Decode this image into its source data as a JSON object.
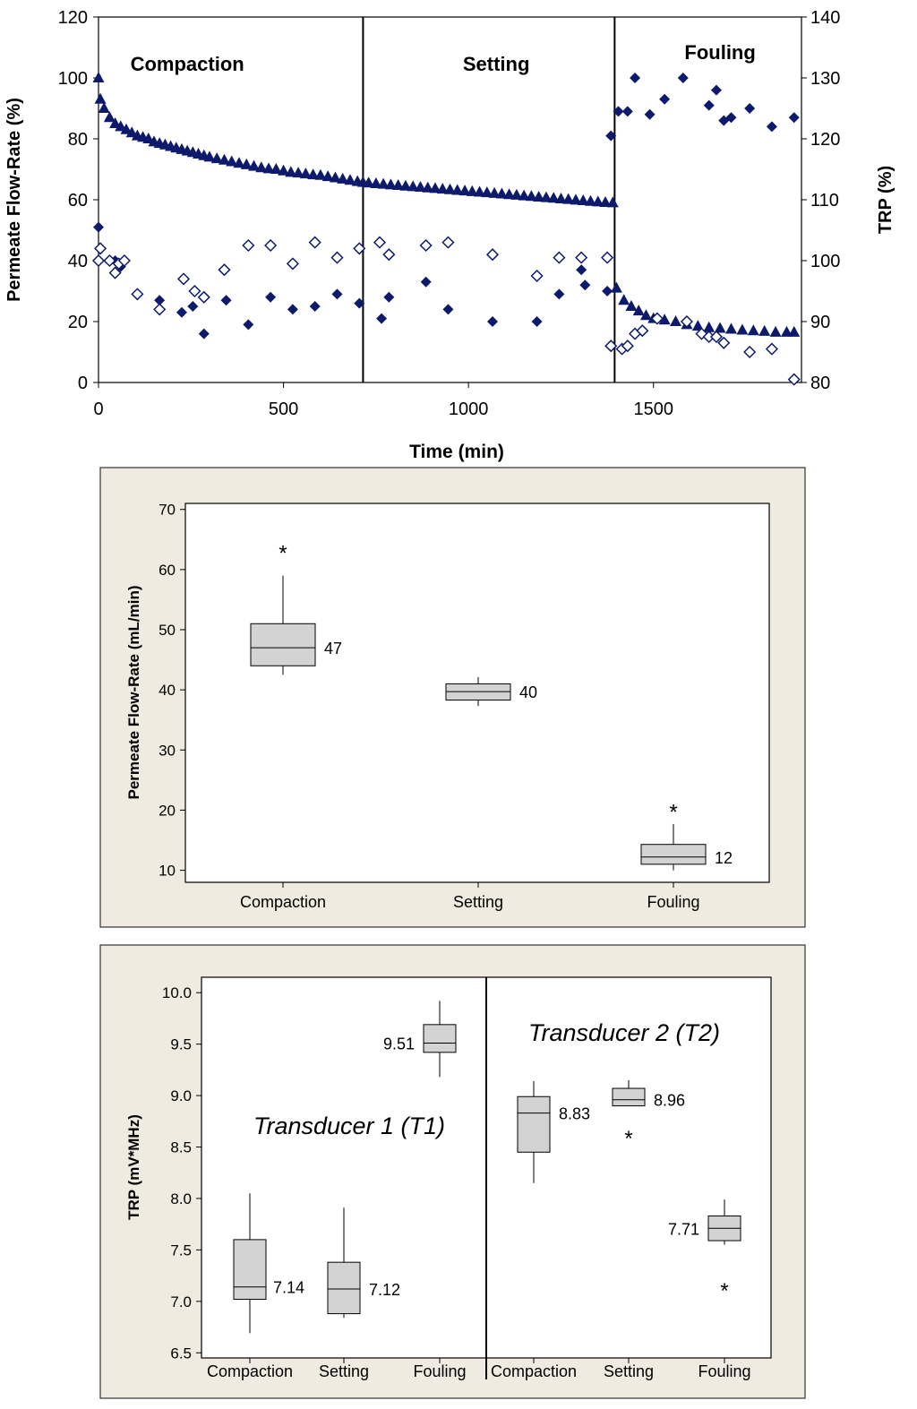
{
  "colors": {
    "series": "#0d1a6b",
    "panel_bg": "#efebe0",
    "box_fill": "#d3d3d3",
    "axis": "#000000"
  },
  "chart_data": [
    {
      "type": "scatter",
      "xlabel": "Time (min)",
      "ylabel": "Permeate Flow-Rate (%)",
      "y2label": "TRP (%)",
      "xlim": [
        0,
        1900
      ],
      "ylim": [
        0,
        120
      ],
      "y2lim": [
        80,
        140
      ],
      "xticks": [
        "0",
        "500",
        "1000",
        "1500"
      ],
      "yticks": [
        "0",
        "20",
        "40",
        "60",
        "80",
        "100",
        "120"
      ],
      "y2ticks": [
        "80",
        "90",
        "100",
        "110",
        "120",
        "130",
        "140"
      ],
      "phase_boundaries": [
        715,
        1395
      ],
      "phase_labels": [
        "Compaction",
        "Setting",
        "Fouling"
      ],
      "series": [
        {
          "name": "Permeate Flow-Rate",
          "axis": "left",
          "marker": "triangle",
          "x": [
            0,
            5,
            15,
            30,
            45,
            60,
            75,
            90,
            105,
            120,
            135,
            150,
            165,
            180,
            195,
            210,
            225,
            240,
            255,
            270,
            285,
            300,
            320,
            340,
            360,
            380,
            400,
            420,
            440,
            460,
            480,
            500,
            520,
            540,
            560,
            580,
            600,
            620,
            640,
            660,
            680,
            700,
            715,
            730,
            750,
            770,
            790,
            810,
            830,
            850,
            870,
            890,
            910,
            930,
            950,
            970,
            990,
            1010,
            1030,
            1050,
            1070,
            1090,
            1110,
            1130,
            1150,
            1170,
            1190,
            1210,
            1230,
            1250,
            1270,
            1290,
            1310,
            1330,
            1350,
            1370,
            1390,
            1400,
            1420,
            1440,
            1460,
            1480,
            1500,
            1530,
            1560,
            1590,
            1620,
            1650,
            1680,
            1710,
            1740,
            1770,
            1800,
            1830,
            1860,
            1880
          ],
          "y": [
            100,
            93,
            90,
            87,
            85,
            84,
            83,
            82,
            81,
            80.5,
            80,
            79,
            78.5,
            78,
            77.5,
            77,
            76.5,
            76,
            75.5,
            75,
            74.5,
            74,
            73.5,
            73,
            72.5,
            72,
            71.5,
            71,
            70.5,
            70.2,
            70,
            69.5,
            69,
            68.8,
            68.5,
            68.2,
            68,
            67.6,
            67.2,
            66.8,
            66.4,
            66,
            65.7,
            65.5,
            65.3,
            65.1,
            64.9,
            64.7,
            64.5,
            64.3,
            64.1,
            63.9,
            63.7,
            63.5,
            63.3,
            63.1,
            62.9,
            62.7,
            62.5,
            62.3,
            62.1,
            61.9,
            61.7,
            61.5,
            61.3,
            61.1,
            60.9,
            60.7,
            60.5,
            60.3,
            60.1,
            59.9,
            59.7,
            59.5,
            59.3,
            59.1,
            59,
            31,
            27,
            25,
            23.5,
            22,
            21,
            20.5,
            20,
            19,
            18.5,
            18,
            17.8,
            17.5,
            17.2,
            17,
            16.8,
            16.5,
            16.5,
            16.5
          ]
        },
        {
          "name": "TRP T1",
          "axis": "right",
          "marker": "filled-diamond",
          "x": [
            0,
            45,
            60,
            165,
            225,
            255,
            285,
            345,
            405,
            465,
            525,
            585,
            645,
            705,
            765,
            785,
            885,
            945,
            1065,
            1185,
            1245,
            1305,
            1315,
            1375,
            1385,
            1405,
            1430,
            1450,
            1490,
            1530,
            1580,
            1650,
            1670,
            1690,
            1710,
            1760,
            1820,
            1880
          ],
          "y": [
            105.5,
            100,
            99,
            93.5,
            91.5,
            92.5,
            88,
            93.5,
            89.5,
            94,
            92,
            92.5,
            94.5,
            93,
            90.5,
            94,
            96.5,
            92,
            90,
            90,
            94.5,
            98.5,
            96,
            95,
            120.5,
            124.5,
            124.5,
            130,
            124,
            126.5,
            130,
            125.5,
            128,
            123,
            123.5,
            125,
            122,
            123.5
          ]
        },
        {
          "name": "TRP T2",
          "axis": "right",
          "marker": "open-diamond",
          "x": [
            0,
            5,
            30,
            45,
            55,
            70,
            105,
            165,
            230,
            260,
            285,
            340,
            405,
            465,
            525,
            585,
            645,
            705,
            760,
            785,
            885,
            945,
            1065,
            1185,
            1245,
            1305,
            1375,
            1385,
            1415,
            1430,
            1450,
            1470,
            1510,
            1590,
            1630,
            1650,
            1670,
            1690,
            1760,
            1820,
            1880
          ],
          "y": [
            100,
            102,
            100,
            98,
            99.5,
            100,
            94.5,
            92,
            97,
            95,
            94,
            98.5,
            102.5,
            102.5,
            99.5,
            103,
            100.5,
            102,
            103,
            101,
            102.5,
            103,
            101,
            97.5,
            100.5,
            100.5,
            100.5,
            86,
            85.5,
            86,
            88,
            88.5,
            90.5,
            90,
            88,
            87.5,
            87.5,
            86.5,
            85,
            85.5,
            80.5
          ]
        }
      ]
    },
    {
      "type": "boxplot",
      "ylabel": "Permeate Flow-Rate (mL/min)",
      "ylim": [
        8,
        71
      ],
      "yticks": [
        "10",
        "20",
        "30",
        "40",
        "50",
        "60",
        "70"
      ],
      "categories": [
        "Compaction",
        "Setting",
        "Fouling"
      ],
      "boxes": [
        {
          "name": "Compaction",
          "whisker_low": 42.5,
          "q1": 44,
          "median": 47,
          "q3": 51,
          "whisker_high": 59,
          "outliers": [
            63
          ],
          "median_label": "47"
        },
        {
          "name": "Setting",
          "whisker_low": 37.3,
          "q1": 38.3,
          "median": 39.7,
          "q3": 41,
          "whisker_high": 42.1,
          "outliers": [],
          "median_label": "40"
        },
        {
          "name": "Fouling",
          "whisker_low": 10,
          "q1": 11,
          "median": 12.2,
          "q3": 14.3,
          "whisker_high": 17.7,
          "outliers": [
            20
          ],
          "median_label": "12"
        }
      ]
    },
    {
      "type": "boxplot",
      "ylabel": "TRP (mV*MHz)",
      "ylim": [
        6.45,
        10.15
      ],
      "yticks": [
        "6.5",
        "7.0",
        "7.5",
        "8.0",
        "8.5",
        "9.0",
        "9.5",
        "10.0"
      ],
      "categories": [
        "Compaction",
        "Setting",
        "Fouling",
        "Compaction",
        "Setting",
        "Fouling"
      ],
      "groups": [
        "Transducer 1 (T1)",
        "Transducer 2 (T2)"
      ],
      "boxes": [
        {
          "name": "Compaction",
          "group": "T1",
          "whisker_low": 6.69,
          "q1": 7.02,
          "median": 7.14,
          "q3": 7.6,
          "whisker_high": 8.05,
          "outliers": [],
          "median_label": "7.14"
        },
        {
          "name": "Setting",
          "group": "T1",
          "whisker_low": 6.84,
          "q1": 6.88,
          "median": 7.12,
          "q3": 7.38,
          "whisker_high": 7.91,
          "outliers": [],
          "median_label": "7.12"
        },
        {
          "name": "Fouling",
          "group": "T1",
          "whisker_low": 9.18,
          "q1": 9.42,
          "median": 9.51,
          "q3": 9.69,
          "whisker_high": 9.92,
          "outliers": [],
          "median_label": "9.51"
        },
        {
          "name": "Compaction",
          "group": "T2",
          "whisker_low": 8.15,
          "q1": 8.45,
          "median": 8.83,
          "q3": 8.99,
          "whisker_high": 9.14,
          "outliers": [],
          "median_label": "8.83"
        },
        {
          "name": "Setting",
          "group": "T2",
          "whisker_low": 8.9,
          "q1": 8.9,
          "median": 8.96,
          "q3": 9.07,
          "whisker_high": 9.15,
          "outliers": [
            8.6
          ],
          "median_label": "8.96"
        },
        {
          "name": "Fouling",
          "group": "T2",
          "whisker_low": 7.55,
          "q1": 7.59,
          "median": 7.71,
          "q3": 7.83,
          "whisker_high": 7.99,
          "outliers": [
            7.12
          ],
          "median_label": "7.71"
        }
      ]
    }
  ]
}
